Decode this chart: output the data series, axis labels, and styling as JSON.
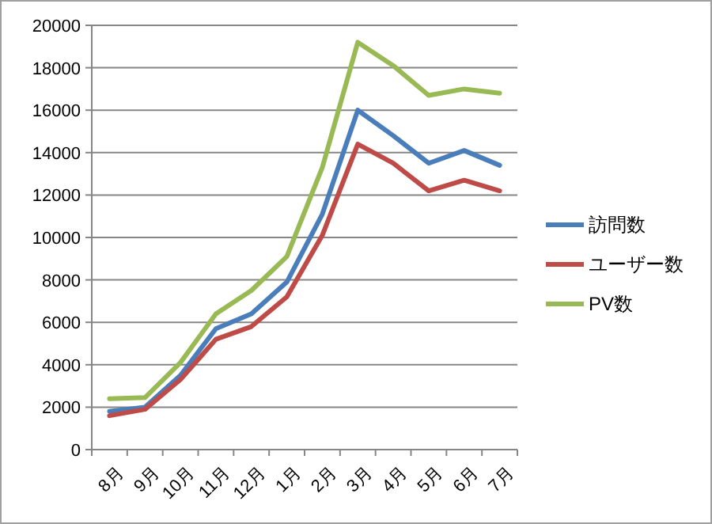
{
  "chart_data": {
    "type": "line",
    "categories": [
      "8月",
      "9月",
      "10月",
      "11月",
      "12月",
      "1月",
      "2月",
      "3月",
      "4月",
      "5月",
      "6月",
      "7月"
    ],
    "series": [
      {
        "name": "訪問数",
        "color": "#4a7ebb",
        "values": [
          1800,
          2000,
          3500,
          5700,
          6400,
          7900,
          11100,
          16000,
          14800,
          13500,
          14100,
          13400
        ]
      },
      {
        "name": "ユーザー数",
        "color": "#be4b48",
        "values": [
          1600,
          1900,
          3300,
          5200,
          5800,
          7200,
          10100,
          14400,
          13500,
          12200,
          12700,
          12200
        ]
      },
      {
        "name": "PV数",
        "color": "#98b954",
        "values": [
          2400,
          2450,
          4100,
          6400,
          7500,
          9100,
          13300,
          19200,
          18100,
          16700,
          17000,
          16800
        ]
      }
    ],
    "ylim": [
      0,
      20000
    ],
    "yticks": [
      0,
      2000,
      4000,
      6000,
      8000,
      10000,
      12000,
      14000,
      16000,
      18000,
      20000
    ],
    "grid": "y",
    "legend": "right",
    "marker": "none",
    "line_style": "solid"
  }
}
